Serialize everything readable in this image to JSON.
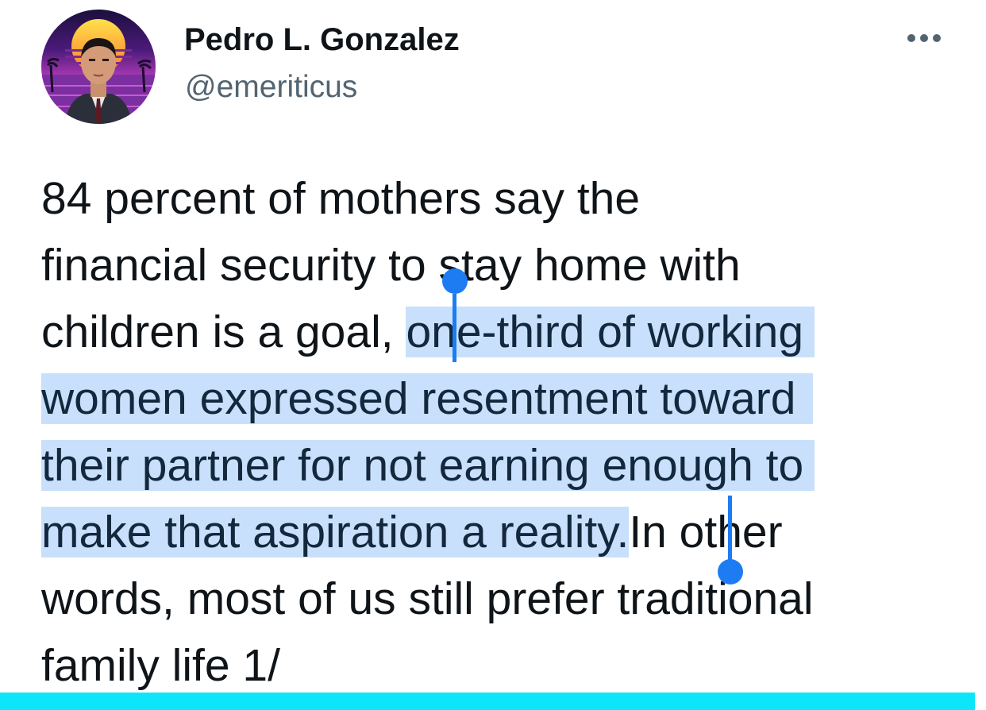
{
  "tweet": {
    "author": {
      "display_name": "Pedro L. Gonzalez",
      "handle": "@emeriticus",
      "avatar_icon": "profile-photo-synthwave-sunset"
    },
    "more_icon": "ellipsis-horizontal-icon",
    "text_lines": [
      {
        "before": "84 percent of mothers say the"
      },
      {
        "before": "financial security to stay home with"
      },
      {
        "before": "children is a goal, ",
        "selected": "one-third of working"
      },
      {
        "selected": "women expressed resentment toward"
      },
      {
        "selected": "their partner for not earning enough to"
      },
      {
        "selected": "make that aspiration a reality.",
        "after": "In other"
      },
      {
        "before": "words, most of us still prefer traditional"
      },
      {
        "before": "family life 1/"
      }
    ]
  },
  "selection": {
    "highlight_color": "#c8e0fc",
    "handle_color": "#1d7cf2"
  },
  "bottom_bar_color": "#0de6fa"
}
